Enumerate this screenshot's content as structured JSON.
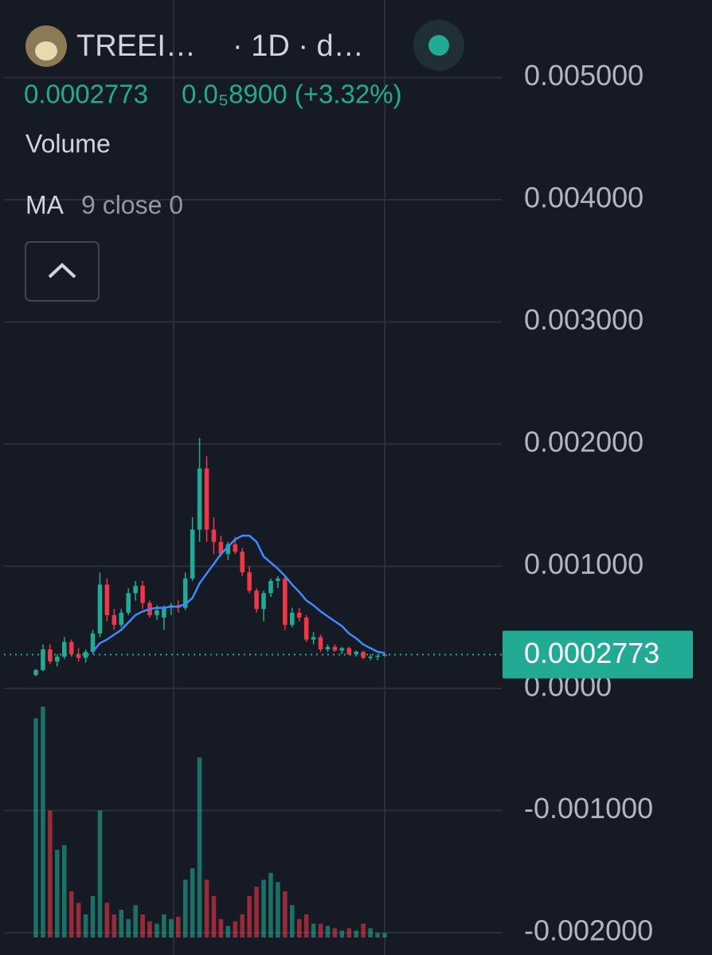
{
  "chart_data": {
    "type": "candlestick",
    "symbol": "TREEI…",
    "interval": "· 1D · d…",
    "last_price": 0.0002773,
    "change": "0.0₅8900 (+3.32%)",
    "volume_label": "Volume",
    "ma": {
      "name": "MA",
      "params": "9 close 0",
      "color": "#3d8bfd",
      "values": [
        null,
        null,
        null,
        null,
        null,
        null,
        null,
        null,
        0.0003,
        0.00037,
        0.0004,
        0.00044,
        0.00048,
        0.00054,
        0.0006,
        0.00063,
        0.00065,
        0.00066,
        0.00066,
        0.00067,
        0.00067,
        0.00069,
        0.00074,
        0.00086,
        0.00094,
        0.00102,
        0.0011,
        0.00116,
        0.00122,
        0.00125,
        0.00125,
        0.0012,
        0.00108,
        0.00103,
        0.00098,
        0.00092,
        0.00085,
        0.00079,
        0.00072,
        0.00068,
        0.00063,
        0.00059,
        0.00055,
        0.00051,
        0.00045,
        0.00041,
        0.00036,
        0.00033,
        0.0003,
        0.00029
      ]
    },
    "up_color": "#22ab94",
    "down_color": "#f23645",
    "ohlc": [
      [
        0.00011,
        0.00016,
        0.0001,
        0.00015
      ],
      [
        0.00015,
        0.00036,
        0.00014,
        0.00032
      ],
      [
        0.00032,
        0.00036,
        0.0002,
        0.00022
      ],
      [
        0.00022,
        0.00028,
        0.00018,
        0.00026
      ],
      [
        0.00026,
        0.00042,
        0.00024,
        0.00038
      ],
      [
        0.00038,
        0.0004,
        0.00026,
        0.00028
      ],
      [
        0.00028,
        0.00033,
        0.00022,
        0.00025
      ],
      [
        0.00025,
        0.00032,
        0.00021,
        0.0003
      ],
      [
        0.0003,
        0.00048,
        0.00028,
        0.00045
      ],
      [
        0.00045,
        0.00095,
        0.00042,
        0.00085
      ],
      [
        0.00085,
        0.0009,
        0.00055,
        0.0006
      ],
      [
        0.0006,
        0.00065,
        0.00048,
        0.00052
      ],
      [
        0.00052,
        0.00065,
        0.0005,
        0.00062
      ],
      [
        0.00062,
        0.00082,
        0.0006,
        0.00078
      ],
      [
        0.00078,
        0.00088,
        0.00072,
        0.00084
      ],
      [
        0.00084,
        0.00088,
        0.00065,
        0.0007
      ],
      [
        0.0007,
        0.00072,
        0.00058,
        0.0006
      ],
      [
        0.0006,
        0.00068,
        0.00056,
        0.00064
      ],
      [
        0.00058,
        0.00068,
        0.00048,
        0.00066
      ],
      [
        0.00066,
        0.0007,
        0.0006,
        0.00068
      ],
      [
        0.00068,
        0.00072,
        0.00062,
        0.00066
      ],
      [
        0.00066,
        0.00095,
        0.00064,
        0.0009
      ],
      [
        0.0009,
        0.0014,
        0.00088,
        0.0013
      ],
      [
        0.0013,
        0.00205,
        0.0012,
        0.0018
      ],
      [
        0.0018,
        0.0019,
        0.0012,
        0.0013
      ],
      [
        0.0013,
        0.0014,
        0.0011,
        0.0012
      ],
      [
        0.0012,
        0.00125,
        0.00108,
        0.0011
      ],
      [
        0.0011,
        0.0012,
        0.00105,
        0.00118
      ],
      [
        0.00118,
        0.00124,
        0.0011,
        0.00112
      ],
      [
        0.00112,
        0.00115,
        0.00092,
        0.00095
      ],
      [
        0.00095,
        0.001,
        0.00078,
        0.0008
      ],
      [
        0.0008,
        0.00082,
        0.00062,
        0.00065
      ],
      [
        0.00065,
        0.0008,
        0.00055,
        0.00078
      ],
      [
        0.00078,
        0.0009,
        0.00075,
        0.00088
      ],
      [
        0.00088,
        0.00092,
        0.00082,
        0.0009
      ],
      [
        0.0009,
        0.00092,
        0.00048,
        0.00052
      ],
      [
        0.00052,
        0.00066,
        0.0005,
        0.00062
      ],
      [
        0.00062,
        0.00066,
        0.00055,
        0.00058
      ],
      [
        0.00058,
        0.0006,
        0.00038,
        0.0004
      ],
      [
        0.0004,
        0.00046,
        0.00036,
        0.00042
      ],
      [
        0.00042,
        0.00044,
        0.0003,
        0.00032
      ],
      [
        0.00032,
        0.00036,
        0.0003,
        0.00034
      ],
      [
        0.00034,
        0.00036,
        0.0003,
        0.00031
      ],
      [
        0.00031,
        0.00034,
        0.00028,
        0.00033
      ],
      [
        0.00033,
        0.00034,
        0.00027,
        0.00028
      ],
      [
        0.00028,
        0.00031,
        0.00026,
        0.0003
      ],
      [
        0.0003,
        0.00031,
        0.00024,
        0.00025
      ],
      [
        0.00025,
        0.00028,
        0.00023,
        0.00026
      ],
      [
        0.00026,
        0.00027,
        0.00023,
        0.000268
      ],
      [
        0.000268,
        0.00029,
        0.00026,
        0.0002773
      ]
    ],
    "volume": [
      95,
      100,
      55,
      38,
      40,
      20,
      15,
      10,
      18,
      55,
      15,
      10,
      12,
      8,
      14,
      10,
      7,
      6,
      10,
      8,
      9,
      25,
      30,
      78,
      25,
      18,
      8,
      5,
      7,
      10,
      18,
      22,
      25,
      28,
      24,
      20,
      14,
      8,
      10,
      6,
      6,
      5,
      4,
      3,
      4,
      3,
      6,
      4,
      2,
      2
    ],
    "ylim": [
      -0.002182,
      0.005635
    ],
    "yticks": [
      {
        "value": 0.005,
        "label": "0.005000"
      },
      {
        "value": 0.004,
        "label": "0.004000"
      },
      {
        "value": 0.003,
        "label": "0.003000"
      },
      {
        "value": 0.002,
        "label": "0.002000"
      },
      {
        "value": 0.001,
        "label": "0.001000"
      },
      {
        "value": 0,
        "label": "0.0000"
      },
      {
        "value": -0.001,
        "label": "-0.001000"
      },
      {
        "value": -0.002,
        "label": "-0.002000"
      }
    ],
    "grid": true
  }
}
